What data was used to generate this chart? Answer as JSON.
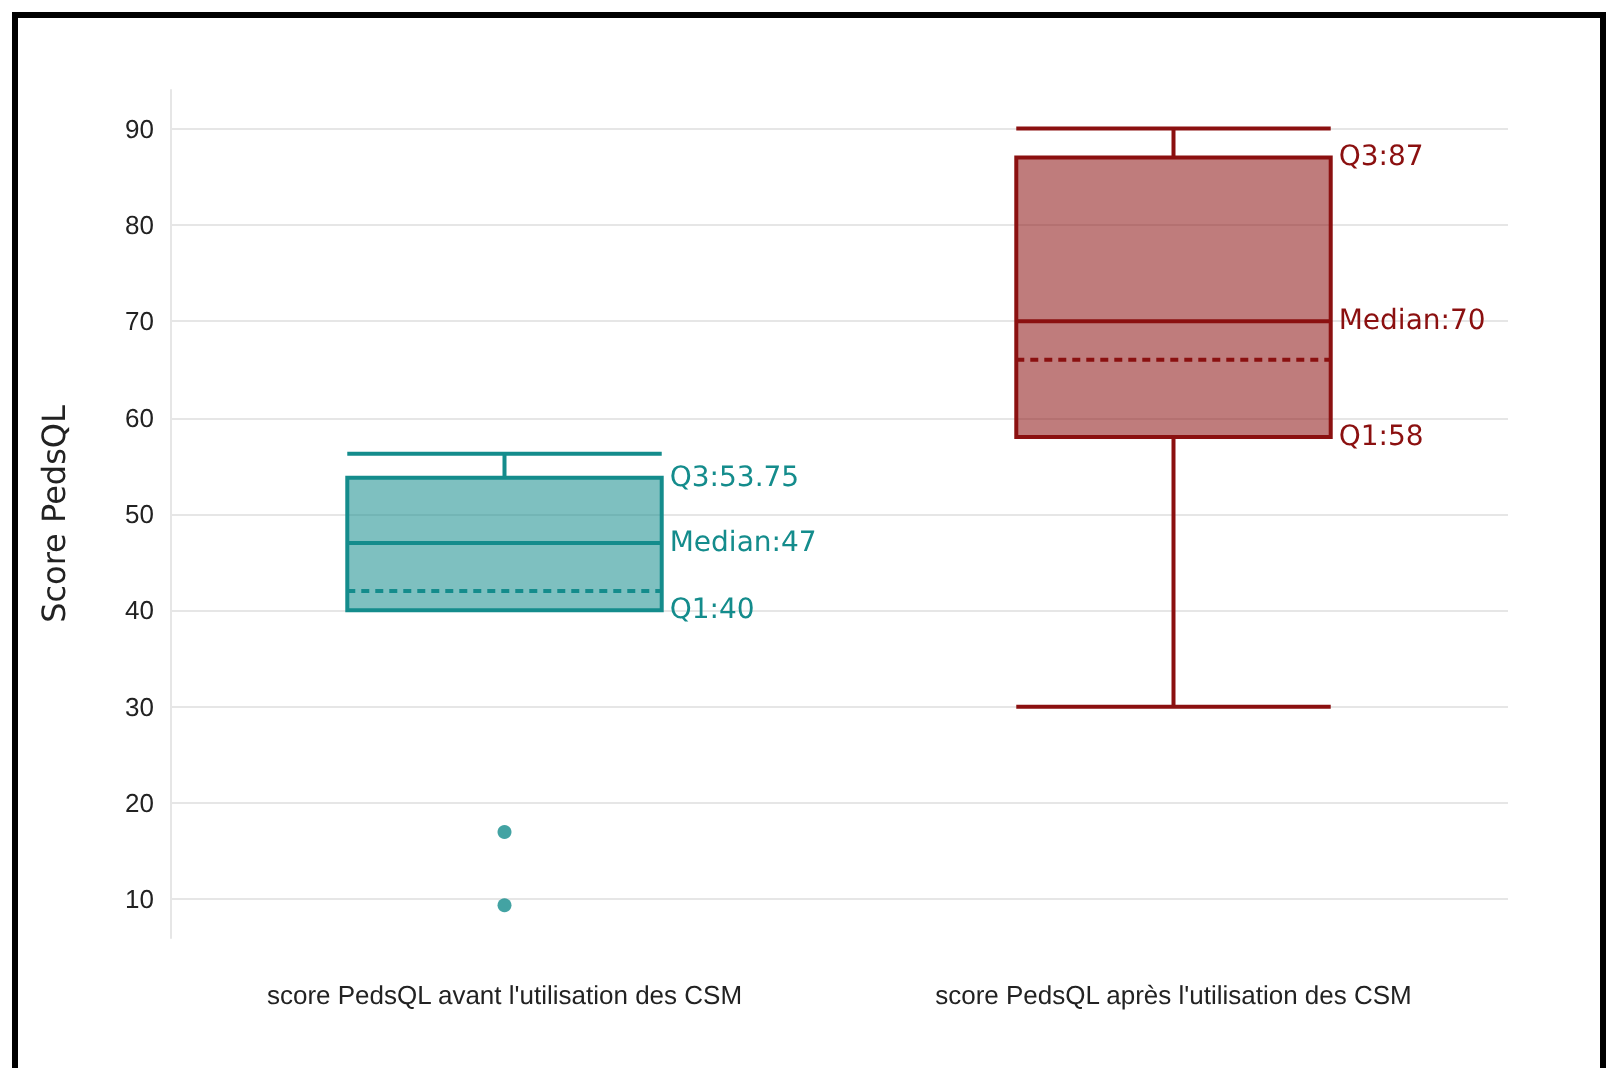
{
  "chart_data": {
    "type": "box",
    "ylabel": "Score PedsQL",
    "categories": [
      "score PedsQL avant l'utilisation des CSM",
      "score PedsQL après l'utilisation des CSM"
    ],
    "colors": [
      "#148c8c",
      "#8b1010"
    ],
    "boxes": [
      {
        "low": 40,
        "q1": 40,
        "median": 47,
        "q3": 53.75,
        "high": 56.25,
        "mean": 42,
        "outliers": [
          17,
          9.4
        ]
      },
      {
        "low": 30,
        "q1": 58,
        "median": 70,
        "q3": 87,
        "high": 90,
        "mean": 66
      }
    ],
    "ylim": [
      6,
      94
    ],
    "yticks": [
      10,
      20,
      30,
      40,
      50,
      60,
      70,
      80,
      90
    ],
    "grid": "y",
    "annotations": [
      "Q3:53.75",
      "Median:47",
      "Q1:40",
      "Q3:87",
      "Median:70",
      "Q1:58"
    ]
  }
}
